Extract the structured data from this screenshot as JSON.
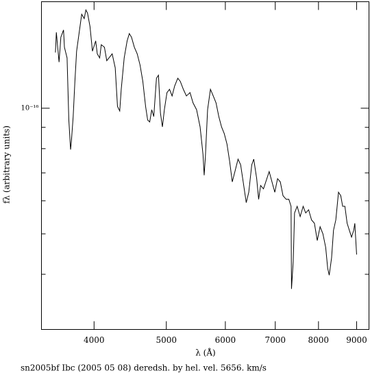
{
  "chart_data": {
    "type": "line",
    "xlabel": "λ (Å)",
    "ylabel": "fλ (arbitrary units)",
    "caption": "sn2005bf Ibc (2005 05 08) deredsh. by hel. vel.  5656. km/s",
    "xscale": "log",
    "yscale": "log",
    "xlim": [
      3400,
      9350
    ],
    "ylim": [
      2.95e-17,
      1.8e-16
    ],
    "xticks": [
      4000,
      5000,
      6000,
      7000,
      8000,
      9000
    ],
    "yticks": [
      {
        "value": 1e-16,
        "label": "10⁻¹⁶"
      }
    ],
    "minor_yticks": [
      4e-17,
      5e-17,
      6e-17,
      7e-17,
      8e-17,
      9e-17
    ],
    "color": "#000000",
    "x": [
      3550,
      3560,
      3590,
      3610,
      3640,
      3650,
      3680,
      3700,
      3720,
      3730,
      3750,
      3770,
      3790,
      3830,
      3850,
      3880,
      3900,
      3920,
      3950,
      3980,
      4020,
      4040,
      4070,
      4090,
      4130,
      4160,
      4230,
      4270,
      4300,
      4330,
      4350,
      4390,
      4430,
      4460,
      4490,
      4530,
      4570,
      4610,
      4650,
      4690,
      4720,
      4750,
      4780,
      4810,
      4850,
      4880,
      4910,
      4940,
      4970,
      5010,
      5050,
      5090,
      5130,
      5180,
      5220,
      5270,
      5320,
      5380,
      5430,
      5490,
      5550,
      5600,
      5620,
      5640,
      5680,
      5730,
      5780,
      5830,
      5880,
      5930,
      5980,
      6030,
      6080,
      6130,
      6180,
      6240,
      6290,
      6340,
      6400,
      6450,
      6510,
      6550,
      6610,
      6650,
      6690,
      6750,
      6870,
      6990,
      7050,
      7110,
      7170,
      7240,
      7300,
      7350,
      7360,
      7400,
      7430,
      7490,
      7560,
      7630,
      7690,
      7760,
      7830,
      7900,
      7970,
      8040,
      8110,
      8180,
      8230,
      8270,
      8330,
      8380,
      8440,
      8510,
      8570,
      8620,
      8680,
      8740,
      8800,
      8860,
      8920,
      8950,
      9000
    ],
    "values": [
      1.36e-16,
      1.52e-16,
      1.29e-16,
      1.48e-16,
      1.54e-16,
      1.4e-16,
      1.32e-16,
      9.37e-17,
      7.96e-17,
      8.36e-17,
      9.55e-17,
      1.16e-16,
      1.37e-16,
      1.57e-16,
      1.68e-16,
      1.64e-16,
      1.72e-16,
      1.69e-16,
      1.57e-16,
      1.37e-16,
      1.45e-16,
      1.35e-16,
      1.32e-16,
      1.42e-16,
      1.4e-16,
      1.3e-16,
      1.35e-16,
      1.25e-16,
      1.01e-16,
      9.85e-17,
      1.11e-16,
      1.32e-16,
      1.45e-16,
      1.51e-16,
      1.48e-16,
      1.4e-16,
      1.35e-16,
      1.27e-16,
      1.16e-16,
      1.01e-16,
      9.37e-17,
      9.27e-17,
      9.92e-17,
      9.55e-17,
      1.18e-16,
      1.2e-16,
      9.74e-17,
      9.02e-17,
      9.92e-17,
      1.09e-16,
      1.11e-16,
      1.07e-16,
      1.13e-16,
      1.18e-16,
      1.16e-16,
      1.11e-16,
      1.07e-16,
      1.09e-16,
      1.03e-16,
      9.92e-17,
      9.02e-17,
      7.75e-17,
      6.91e-17,
      7.6e-17,
      9.92e-17,
      1.11e-16,
      1.07e-16,
      1.03e-16,
      9.55e-17,
      9.02e-17,
      8.69e-17,
      8.21e-17,
      7.46e-17,
      6.66e-17,
      7.05e-17,
      7.55e-17,
      7.32e-17,
      6.66e-17,
      5.94e-17,
      6.29e-17,
      7.32e-17,
      7.55e-17,
      6.78e-17,
      6.05e-17,
      6.53e-17,
      6.41e-17,
      7.05e-17,
      6.29e-17,
      6.78e-17,
      6.66e-17,
      6.17e-17,
      6.05e-17,
      6.05e-17,
      5.82e-17,
      3.69e-17,
      4.3e-17,
      5.61e-17,
      5.82e-17,
      5.5e-17,
      5.82e-17,
      5.61e-17,
      5.71e-17,
      5.4e-17,
      5.3e-17,
      4.82e-17,
      5.2e-17,
      5e-17,
      4.64e-17,
      4.14e-17,
      3.98e-17,
      4.38e-17,
      5.1e-17,
      5.4e-17,
      6.29e-17,
      6.17e-17,
      5.82e-17,
      5.82e-17,
      5.3e-17,
      5.1e-17,
      4.91e-17,
      5.1e-17,
      5.3e-17,
      4.46e-17
    ]
  }
}
